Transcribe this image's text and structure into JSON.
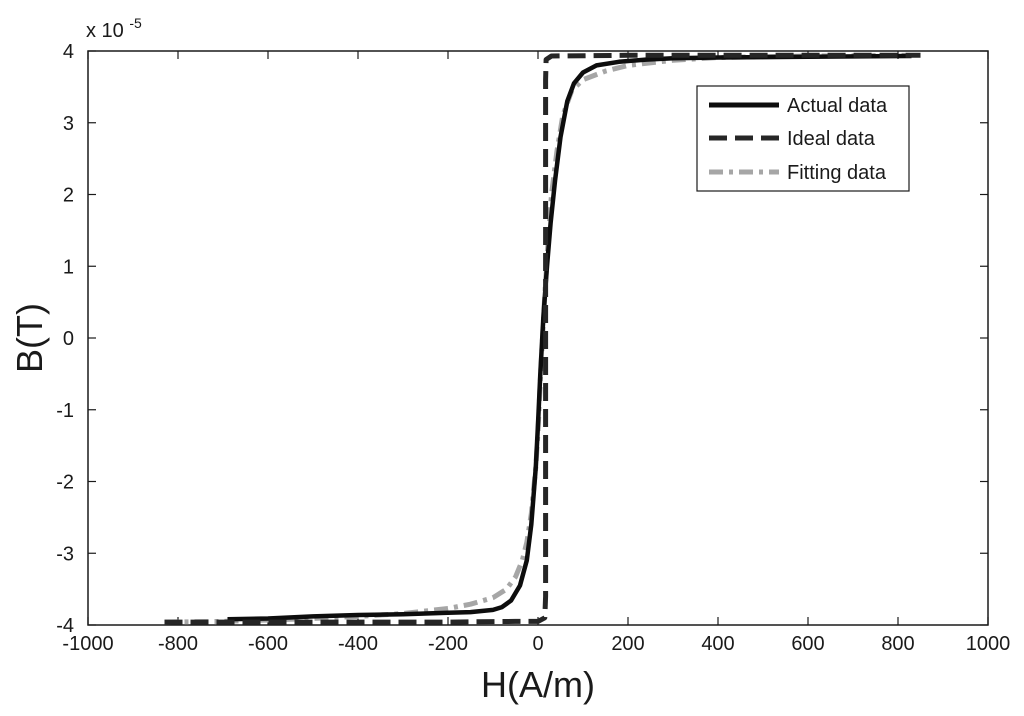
{
  "chart_data": {
    "type": "line",
    "xlabel": "H(A/m)",
    "ylabel": "B(T)",
    "y_multiplier": "x 10",
    "y_multiplier_exponent": "-5",
    "xlim": [
      -1000,
      1000
    ],
    "ylim": [
      -4,
      4
    ],
    "xticks": [
      -1000,
      -800,
      -600,
      -400,
      -200,
      0,
      200,
      400,
      600,
      800,
      1000
    ],
    "yticks": [
      -4,
      -3,
      -2,
      -1,
      0,
      1,
      2,
      3,
      4
    ],
    "grid": false,
    "legend_position": "top-right",
    "series": [
      {
        "name": "Actual data",
        "color": "#0d0d0d",
        "style": "solid",
        "points": [
          [
            -690,
            -3.92
          ],
          [
            -600,
            -3.91
          ],
          [
            -500,
            -3.88
          ],
          [
            -400,
            -3.86
          ],
          [
            -300,
            -3.85
          ],
          [
            -200,
            -3.83
          ],
          [
            -150,
            -3.82
          ],
          [
            -100,
            -3.79
          ],
          [
            -80,
            -3.75
          ],
          [
            -60,
            -3.66
          ],
          [
            -40,
            -3.45
          ],
          [
            -25,
            -3.1
          ],
          [
            -15,
            -2.6
          ],
          [
            -5,
            -1.8
          ],
          [
            0,
            -1.2
          ],
          [
            5,
            -0.5
          ],
          [
            12,
            0.3
          ],
          [
            20,
            1.0
          ],
          [
            28,
            1.6
          ],
          [
            38,
            2.2
          ],
          [
            50,
            2.8
          ],
          [
            65,
            3.3
          ],
          [
            80,
            3.55
          ],
          [
            100,
            3.7
          ],
          [
            130,
            3.8
          ],
          [
            180,
            3.85
          ],
          [
            240,
            3.88
          ],
          [
            300,
            3.9
          ],
          [
            400,
            3.91
          ],
          [
            600,
            3.92
          ],
          [
            830,
            3.93
          ]
        ]
      },
      {
        "name": "Ideal data",
        "color": "#262626",
        "style": "dashed",
        "points": [
          [
            -830,
            -3.96
          ],
          [
            -200,
            -3.96
          ],
          [
            -50,
            -3.95
          ],
          [
            0,
            -3.95
          ],
          [
            15,
            -3.9
          ],
          [
            17,
            -3.6
          ],
          [
            17,
            0
          ],
          [
            17,
            3.6
          ],
          [
            18,
            3.88
          ],
          [
            30,
            3.93
          ],
          [
            200,
            3.94
          ],
          [
            500,
            3.94
          ],
          [
            850,
            3.94
          ]
        ]
      },
      {
        "name": "Fitting data",
        "color": "#a6a6a6",
        "style": "dashdot",
        "points": [
          [
            -830,
            -3.96
          ],
          [
            -700,
            -3.95
          ],
          [
            -600,
            -3.93
          ],
          [
            -500,
            -3.91
          ],
          [
            -400,
            -3.88
          ],
          [
            -300,
            -3.84
          ],
          [
            -200,
            -3.77
          ],
          [
            -150,
            -3.71
          ],
          [
            -100,
            -3.62
          ],
          [
            -70,
            -3.5
          ],
          [
            -50,
            -3.33
          ],
          [
            -35,
            -3.1
          ],
          [
            -25,
            -2.85
          ],
          [
            -15,
            -2.45
          ],
          [
            -5,
            -1.8
          ],
          [
            0,
            -1.3
          ],
          [
            5,
            -0.6
          ],
          [
            10,
            0.0
          ],
          [
            15,
            0.6
          ],
          [
            22,
            1.3
          ],
          [
            30,
            2.0
          ],
          [
            42,
            2.6
          ],
          [
            55,
            3.1
          ],
          [
            75,
            3.45
          ],
          [
            100,
            3.6
          ],
          [
            150,
            3.72
          ],
          [
            200,
            3.8
          ],
          [
            300,
            3.87
          ],
          [
            400,
            3.91
          ],
          [
            600,
            3.93
          ],
          [
            830,
            3.94
          ]
        ]
      }
    ]
  }
}
